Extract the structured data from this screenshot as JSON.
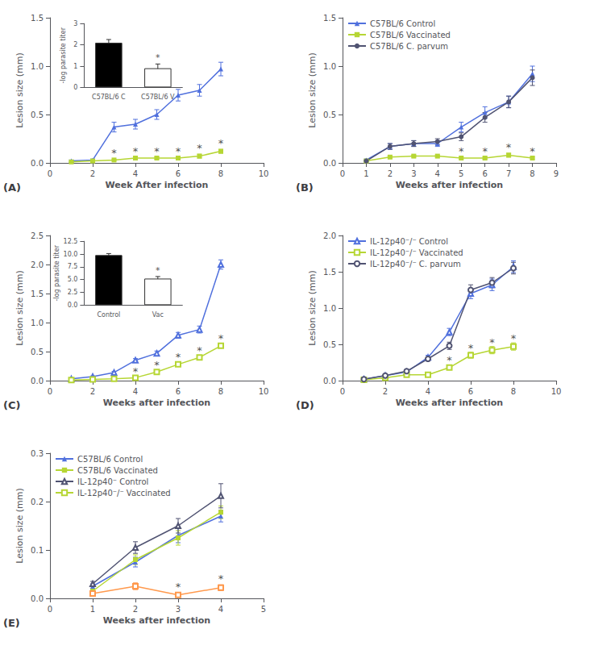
{
  "chart_data": [
    {
      "type": "line",
      "title": "(A)",
      "xlabel": "Week After infection",
      "ylabel": "Lesion size (mm)",
      "xlim": [
        0,
        10
      ],
      "ylim": [
        0,
        1.5
      ],
      "xticks": [
        0,
        2,
        4,
        6,
        8,
        10
      ],
      "yticks": [
        {
          "value": 0,
          "label": "0.0"
        },
        0.5,
        {
          "value": 1,
          "label": "1.0"
        },
        1.5
      ],
      "grid": false,
      "x": [
        1,
        2,
        3,
        4,
        5,
        6,
        7,
        8
      ],
      "series": [
        {
          "marker": "triangle",
          "values": [
            0.02,
            0.03,
            0.37,
            0.4,
            0.5,
            0.7,
            0.75,
            0.97
          ],
          "errors": [
            0.01,
            0.01,
            0.05,
            0.05,
            0.05,
            0.06,
            0.06,
            0.07
          ]
        },
        {
          "marker": "square",
          "values": [
            0.01,
            0.02,
            0.03,
            0.05,
            0.05,
            0.05,
            0.07,
            0.12
          ],
          "errors": [
            0.005,
            0.005,
            0.005,
            0.01,
            0.01,
            0.01,
            0.02,
            0.02
          ]
        }
      ],
      "annotations": [
        {
          "text": "*",
          "x": 3,
          "y": 0.04
        },
        {
          "text": "*",
          "x": 4,
          "y": 0.06
        },
        {
          "text": "*",
          "x": 5,
          "y": 0.06
        },
        {
          "text": "*",
          "x": 6,
          "y": 0.06
        },
        {
          "text": "*",
          "x": 7,
          "y": 0.09
        },
        {
          "text": "*",
          "x": 8,
          "y": 0.14
        }
      ],
      "inset": {
        "type": "bar",
        "categories": [
          "C57BL/6 C",
          "C57BL/6 V"
        ],
        "values": [
          2.1,
          0.9
        ],
        "errors": [
          0.15,
          0.2
        ],
        "colors": [
          "black",
          "white"
        ],
        "ylabel": "-log parasite titer",
        "ylim": [
          0,
          3.0
        ],
        "yticks": [
          0,
          1,
          2,
          3
        ],
        "grid": false,
        "annotations": [
          {
            "text": "*",
            "x": "C57BL/6 V",
            "y": 1.15
          }
        ]
      }
    },
    {
      "type": "line",
      "title": "(B)",
      "xlabel": "Weeks after infection",
      "ylabel": "Lesion size (mm)",
      "xlim": [
        0,
        9
      ],
      "ylim": [
        0,
        1.5
      ],
      "xticks": [
        0,
        1,
        2,
        3,
        4,
        5,
        6,
        7,
        8,
        9
      ],
      "yticks": [
        {
          "value": 0,
          "label": "0.0"
        },
        0.5,
        {
          "value": 1,
          "label": "1.0"
        },
        1.5
      ],
      "grid": false,
      "legend": "upper left",
      "x": [
        1,
        2,
        3,
        4,
        5,
        6,
        7,
        8
      ],
      "series": [
        {
          "name": "C57BL/6 Control",
          "marker": "triangle",
          "values": [
            0.03,
            0.17,
            0.2,
            0.2,
            0.37,
            0.52,
            0.63,
            0.92
          ],
          "errors": [
            0.01,
            0.03,
            0.03,
            0.03,
            0.05,
            0.06,
            0.06,
            0.08
          ]
        },
        {
          "name": "C57BL/6 Vaccinated",
          "marker": "square",
          "values": [
            0.02,
            0.06,
            0.07,
            0.07,
            0.05,
            0.05,
            0.08,
            0.05
          ],
          "errors": [
            0.01,
            0.01,
            0.01,
            0.01,
            0.01,
            0.01,
            0.02,
            0.01
          ]
        },
        {
          "name": "C57BL/6 C. parvum",
          "marker": "circle",
          "values": [
            0.02,
            0.17,
            0.2,
            0.22,
            0.27,
            0.47,
            0.63,
            0.88
          ],
          "errors": [
            0.01,
            0.03,
            0.03,
            0.03,
            0.04,
            0.05,
            0.06,
            0.08
          ]
        }
      ],
      "annotations": [
        {
          "text": "*",
          "x": 5,
          "y": 0.06
        },
        {
          "text": "*",
          "x": 6,
          "y": 0.06
        },
        {
          "text": "*",
          "x": 7,
          "y": 0.1
        },
        {
          "text": "*",
          "x": 8,
          "y": 0.06
        }
      ]
    },
    {
      "type": "line",
      "title": "(C)",
      "xlabel": "Weeks after infection",
      "ylabel": "Lesion size (mm)",
      "xlim": [
        0,
        10
      ],
      "ylim": [
        0,
        2.5
      ],
      "xticks": [
        0,
        2,
        4,
        6,
        8,
        10
      ],
      "yticks": [
        {
          "value": 0,
          "label": "0.0"
        },
        0.5,
        {
          "value": 1,
          "label": "1.0"
        },
        1.5,
        {
          "value": 2,
          "label": "2.0"
        },
        2.5
      ],
      "grid": false,
      "x": [
        1,
        2,
        3,
        4,
        5,
        6,
        7,
        8
      ],
      "series": [
        {
          "marker": "triangle-open",
          "values": [
            0.03,
            0.07,
            0.14,
            0.35,
            0.47,
            0.78,
            0.88,
            2.0
          ],
          "errors": [
            0.01,
            0.01,
            0.02,
            0.03,
            0.04,
            0.05,
            0.06,
            0.08
          ]
        },
        {
          "marker": "square-open",
          "values": [
            0.01,
            0.02,
            0.03,
            0.05,
            0.15,
            0.28,
            0.4,
            0.6
          ],
          "errors": [
            0.005,
            0.005,
            0.005,
            0.01,
            0.02,
            0.03,
            0.03,
            0.04
          ]
        }
      ],
      "annotations": [
        {
          "text": "*",
          "x": 4,
          "y": 0.06
        },
        {
          "text": "*",
          "x": 5,
          "y": 0.17
        },
        {
          "text": "*",
          "x": 6,
          "y": 0.3
        },
        {
          "text": "*",
          "x": 7,
          "y": 0.42
        },
        {
          "text": "*",
          "x": 8,
          "y": 0.62
        }
      ],
      "inset": {
        "type": "bar",
        "categories": [
          "Control",
          "Vac"
        ],
        "values": [
          9.8,
          5.2
        ],
        "errors": [
          0.3,
          0.4
        ],
        "colors": [
          "black",
          "white"
        ],
        "ylabel": "-log parasite titer",
        "ylim": [
          0,
          12.5
        ],
        "yticks": [
          {
            "value": 0,
            "label": "0.0"
          },
          2.5,
          {
            "value": 5,
            "label": "5.0"
          },
          7.5,
          {
            "value": 10,
            "label": "10.0"
          },
          12.5
        ],
        "grid": false,
        "annotations": [
          {
            "text": "*",
            "x": "Vac",
            "y": 5.7
          }
        ]
      }
    },
    {
      "type": "line",
      "title": "(D)",
      "xlabel": "Weeks after infection",
      "ylabel": "Lesion size (mm)",
      "xlim": [
        0,
        10
      ],
      "ylim": [
        0,
        2.0
      ],
      "xticks": [
        0,
        2,
        4,
        6,
        8,
        10
      ],
      "yticks": [
        {
          "value": 0,
          "label": "0.0"
        },
        0.5,
        {
          "value": 1,
          "label": "1.0"
        },
        1.5,
        {
          "value": 2,
          "label": "2.0"
        }
      ],
      "grid": false,
      "legend": "upper left",
      "x": [
        1,
        2,
        3,
        4,
        5,
        6,
        7,
        8
      ],
      "series": [
        {
          "name": "IL-12p40⁻/⁻ Control",
          "marker": "triangle-open",
          "values": [
            0.02,
            0.07,
            0.12,
            0.32,
            0.67,
            1.2,
            1.32,
            1.57
          ],
          "errors": [
            0.005,
            0.01,
            0.02,
            0.03,
            0.05,
            0.07,
            0.08,
            0.08
          ]
        },
        {
          "name": "IL-12p40⁻/⁻ Vaccinated",
          "marker": "square-open",
          "values": [
            0.01,
            0.04,
            0.08,
            0.08,
            0.18,
            0.35,
            0.42,
            0.47
          ],
          "errors": [
            0.005,
            0.01,
            0.01,
            0.01,
            0.02,
            0.04,
            0.05,
            0.05
          ]
        },
        {
          "name": "IL-12p40⁻/⁻ C. parvum",
          "marker": "circle-open",
          "values": [
            0.02,
            0.07,
            0.13,
            0.3,
            0.48,
            1.25,
            1.35,
            1.55
          ],
          "errors": [
            0.005,
            0.01,
            0.02,
            0.03,
            0.05,
            0.07,
            0.07,
            0.08
          ]
        }
      ],
      "annotations": [
        {
          "text": "*",
          "x": 5,
          "y": 0.2
        },
        {
          "text": "*",
          "x": 6,
          "y": 0.37
        },
        {
          "text": "*",
          "x": 7,
          "y": 0.45
        },
        {
          "text": "*",
          "x": 8,
          "y": 0.5
        }
      ]
    },
    {
      "type": "line",
      "title": "(E)",
      "xlabel": "Weeks after infection",
      "ylabel": "Lesion size (mm)",
      "xlim": [
        0,
        5
      ],
      "ylim": [
        0,
        0.3
      ],
      "xticks": [
        0,
        1,
        2,
        3,
        4,
        5
      ],
      "yticks": [
        {
          "value": 0,
          "label": "0.0"
        },
        0.1,
        0.2,
        0.3
      ],
      "grid": false,
      "legend": "upper left",
      "x": [
        1,
        2,
        3,
        4
      ],
      "series": [
        {
          "name": "C57BL/6 Control",
          "marker": "triangle",
          "values": [
            0.025,
            0.075,
            0.13,
            0.17
          ],
          "errors": [
            0.005,
            0.01,
            0.015,
            0.012
          ]
        },
        {
          "name": "C57BL/6 Vaccinated",
          "marker": "square",
          "values": [
            0.015,
            0.08,
            0.125,
            0.178
          ],
          "errors": [
            0.004,
            0.01,
            0.015,
            0.013
          ]
        },
        {
          "name": "IL-12p40⁻ Control",
          "marker": "triangle-open",
          "values": [
            0.03,
            0.105,
            0.15,
            0.212
          ],
          "errors": [
            0.005,
            0.012,
            0.015,
            0.025
          ]
        },
        {
          "name": "IL-12p40⁻/⁻ Vaccinated",
          "marker": "square-open",
          "values": [
            0.01,
            0.025,
            0.007,
            0.022
          ],
          "errors": [
            0.003,
            0.007,
            0.003,
            0.006
          ]
        }
      ],
      "annotations": [
        {
          "text": "*",
          "x": 3,
          "y": 0.011
        },
        {
          "text": "*",
          "x": 4,
          "y": 0.029
        }
      ]
    }
  ]
}
